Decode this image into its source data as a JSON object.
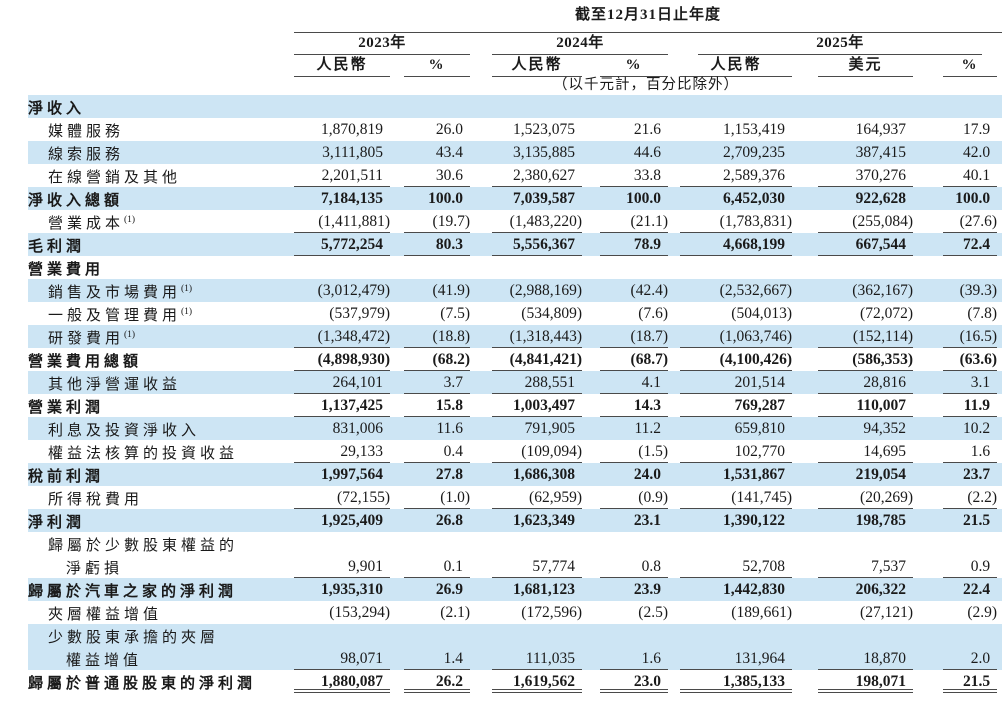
{
  "colors": {
    "row_shade": "#cde5f4",
    "rule_line": "#4a4a4a",
    "text": "#1a1a1a"
  },
  "table": {
    "period_title": "截至12月31日止年度",
    "unit_note": "（以千元計，百分比除外）",
    "year_groups": [
      {
        "label": "2023年"
      },
      {
        "label": "2024年"
      },
      {
        "label": "2025年"
      }
    ],
    "columns": [
      "人民幣",
      "%",
      "人民幣",
      "%",
      "人民幣",
      "美元",
      "%"
    ],
    "rows": [
      {
        "label": "淨收入",
        "bold": true,
        "shaded": true,
        "indent": 0,
        "values": null
      },
      {
        "label": "媒體服務",
        "indent": 1,
        "values": [
          "1,870,819",
          "26.0",
          "1,523,075",
          "21.6",
          "1,153,419",
          "164,937",
          "17.9"
        ]
      },
      {
        "label": "線索服務",
        "indent": 1,
        "shaded": true,
        "values": [
          "3,111,805",
          "43.4",
          "3,135,885",
          "44.6",
          "2,709,235",
          "387,415",
          "42.0"
        ]
      },
      {
        "label": "在線營銷及其他",
        "indent": 1,
        "values": [
          "2,201,511",
          "30.6",
          "2,380,627",
          "33.8",
          "2,589,376",
          "370,276",
          "40.1"
        ],
        "line_below": true
      },
      {
        "label": "淨收入總額",
        "bold": true,
        "shaded": true,
        "indent": 0,
        "values": [
          "7,184,135",
          "100.0",
          "7,039,587",
          "100.0",
          "6,452,030",
          "922,628",
          "100.0"
        ]
      },
      {
        "label": "營業成本",
        "sup": "(1)",
        "indent": 1,
        "values": [
          "(1,411,881)",
          "(19.7)",
          "(1,483,220)",
          "(21.1)",
          "(1,783,831)",
          "(255,084)",
          "(27.6)"
        ],
        "line_below": true
      },
      {
        "label": "毛利潤",
        "bold": true,
        "shaded": true,
        "indent": 0,
        "values": [
          "5,772,254",
          "80.3",
          "5,556,367",
          "78.9",
          "4,668,199",
          "667,544",
          "72.4"
        ],
        "line_below": true
      },
      {
        "label": "營業費用",
        "bold": true,
        "indent": 0,
        "values": null
      },
      {
        "label": "銷售及市場費用",
        "sup": "(1)",
        "indent": 1,
        "shaded": true,
        "values": [
          "(3,012,479)",
          "(41.9)",
          "(2,988,169)",
          "(42.4)",
          "(2,532,667)",
          "(362,167)",
          "(39.3)"
        ]
      },
      {
        "label": "一般及管理費用",
        "sup": "(1)",
        "indent": 1,
        "values": [
          "(537,979)",
          "(7.5)",
          "(534,809)",
          "(7.6)",
          "(504,013)",
          "(72,072)",
          "(7.8)"
        ]
      },
      {
        "label": "研發費用",
        "sup": "(1)",
        "indent": 1,
        "shaded": true,
        "values": [
          "(1,348,472)",
          "(18.8)",
          "(1,318,443)",
          "(18.7)",
          "(1,063,746)",
          "(152,114)",
          "(16.5)"
        ],
        "line_below": true
      },
      {
        "label": "營業費用總額",
        "bold": true,
        "indent": 0,
        "values": [
          "(4,898,930)",
          "(68.2)",
          "(4,841,421)",
          "(68.7)",
          "(4,100,426)",
          "(586,353)",
          "(63.6)"
        ],
        "line_below": true
      },
      {
        "label": "其他淨營運收益",
        "indent": 1,
        "shaded": true,
        "values": [
          "264,101",
          "3.7",
          "288,551",
          "4.1",
          "201,514",
          "28,816",
          "3.1"
        ],
        "line_below": true
      },
      {
        "label": "營業利潤",
        "bold": true,
        "indent": 0,
        "values": [
          "1,137,425",
          "15.8",
          "1,003,497",
          "14.3",
          "769,287",
          "110,007",
          "11.9"
        ],
        "line_below": true
      },
      {
        "label": "利息及投資淨收入",
        "indent": 1,
        "shaded": true,
        "values": [
          "831,006",
          "11.6",
          "791,905",
          "11.2",
          "659,810",
          "94,352",
          "10.2"
        ]
      },
      {
        "label": "權益法核算的投資收益",
        "indent": 1,
        "values": [
          "29,133",
          "0.4",
          "(109,094)",
          "(1.5)",
          "102,770",
          "14,695",
          "1.6"
        ],
        "line_below": true
      },
      {
        "label": "稅前利潤",
        "bold": true,
        "shaded": true,
        "indent": 0,
        "values": [
          "1,997,564",
          "27.8",
          "1,686,308",
          "24.0",
          "1,531,867",
          "219,054",
          "23.7"
        ]
      },
      {
        "label": "所得稅費用",
        "indent": 1,
        "values": [
          "(72,155)",
          "(1.0)",
          "(62,959)",
          "(0.9)",
          "(141,745)",
          "(20,269)",
          "(2.2)"
        ],
        "line_below": true
      },
      {
        "label": "淨利潤",
        "bold": true,
        "shaded": true,
        "indent": 0,
        "values": [
          "1,925,409",
          "26.8",
          "1,623,349",
          "23.1",
          "1,390,122",
          "198,785",
          "21.5"
        ]
      },
      {
        "label": "歸屬於少數股東權益的",
        "indent": 1,
        "values": null
      },
      {
        "label": "淨虧損",
        "indent": 2,
        "values": [
          "9,901",
          "0.1",
          "57,774",
          "0.8",
          "52,708",
          "7,537",
          "0.9"
        ],
        "line_below": true
      },
      {
        "label": "歸屬於汽車之家的淨利潤",
        "bold": true,
        "shaded": true,
        "indent": 0,
        "values": [
          "1,935,310",
          "26.9",
          "1,681,123",
          "23.9",
          "1,442,830",
          "206,322",
          "22.4"
        ]
      },
      {
        "label": "夾層權益增值",
        "indent": 1,
        "values": [
          "(153,294)",
          "(2.1)",
          "(172,596)",
          "(2.5)",
          "(189,661)",
          "(27,121)",
          "(2.9)"
        ]
      },
      {
        "label": "少數股東承擔的夾層",
        "indent": 1,
        "shaded": true,
        "values": null
      },
      {
        "label": "權益增值",
        "indent": 2,
        "shaded": true,
        "values": [
          "98,071",
          "1.4",
          "111,035",
          "1.6",
          "131,964",
          "18,870",
          "2.0"
        ],
        "line_below": true
      },
      {
        "label": "歸屬於普通股股東的淨利潤",
        "bold": true,
        "indent": 0,
        "values": [
          "1,880,087",
          "26.2",
          "1,619,562",
          "23.0",
          "1,385,133",
          "198,071",
          "21.5"
        ],
        "double_below": true
      }
    ]
  }
}
